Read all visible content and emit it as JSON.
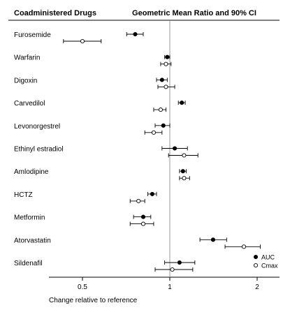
{
  "chart_data": {
    "type": "forest",
    "column_headers": {
      "left": "Coadministered Drugs",
      "right": "Geometric Mean Ratio and 90% CI"
    },
    "xlabel": "Change relative to reference",
    "xscale": "log",
    "xlim": [
      0.36,
      3.1
    ],
    "xticks": [
      0.5,
      1,
      2
    ],
    "xtick_labels": [
      "0.5",
      "1",
      "2"
    ],
    "reference_line": 1,
    "legend": {
      "placement": "bottom-right",
      "entries": [
        {
          "name": "AUC",
          "marker": "filled-circle"
        },
        {
          "name": "Cmax",
          "marker": "open-circle"
        }
      ]
    },
    "categories": [
      "Furosemide",
      "Warfarin",
      "Digoxin",
      "Carvedilol",
      "Levonorgestrel",
      "Ethinyl estradiol",
      "Amlodipine",
      "HCTZ",
      "Metformin",
      "Atorvastatin",
      "Sildenafil"
    ],
    "series": [
      {
        "name": "AUC",
        "points": [
          {
            "est": 0.76,
            "lo": 0.71,
            "hi": 0.81
          },
          {
            "est": 0.98,
            "lo": 0.96,
            "hi": 1.0
          },
          {
            "est": 0.94,
            "lo": 0.9,
            "hi": 0.98
          },
          {
            "est": 1.1,
            "lo": 1.07,
            "hi": 1.13
          },
          {
            "est": 0.95,
            "lo": 0.89,
            "hi": 1.0
          },
          {
            "est": 1.04,
            "lo": 0.94,
            "hi": 1.15
          },
          {
            "est": 1.11,
            "lo": 1.08,
            "hi": 1.14
          },
          {
            "est": 0.87,
            "lo": 0.84,
            "hi": 0.9
          },
          {
            "est": 0.81,
            "lo": 0.75,
            "hi": 0.86
          },
          {
            "est": 1.41,
            "lo": 1.27,
            "hi": 1.57
          },
          {
            "est": 1.08,
            "lo": 0.96,
            "hi": 1.22
          }
        ]
      },
      {
        "name": "Cmax",
        "points": [
          {
            "est": 0.5,
            "lo": 0.43,
            "hi": 0.58
          },
          {
            "est": 0.97,
            "lo": 0.93,
            "hi": 1.01
          },
          {
            "est": 0.97,
            "lo": 0.91,
            "hi": 1.04
          },
          {
            "est": 0.93,
            "lo": 0.88,
            "hi": 0.97
          },
          {
            "est": 0.88,
            "lo": 0.82,
            "hi": 0.94
          },
          {
            "est": 1.12,
            "lo": 0.99,
            "hi": 1.25
          },
          {
            "est": 1.12,
            "lo": 1.08,
            "hi": 1.17
          },
          {
            "est": 0.78,
            "lo": 0.73,
            "hi": 0.82
          },
          {
            "est": 0.81,
            "lo": 0.73,
            "hi": 0.88
          },
          {
            "est": 1.8,
            "lo": 1.55,
            "hi": 2.05
          },
          {
            "est": 1.02,
            "lo": 0.89,
            "hi": 1.2
          }
        ]
      }
    ]
  }
}
